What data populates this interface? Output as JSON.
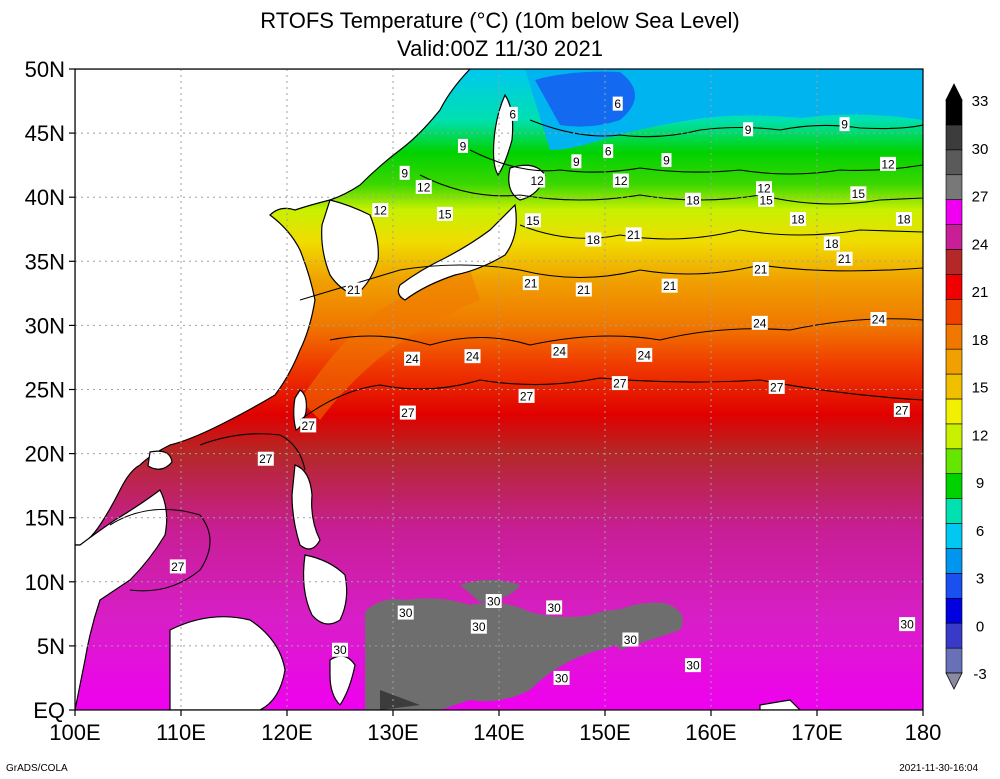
{
  "title": "RTOFS Temperature (°C) (10m below Sea Level)",
  "subtitle": "Valid:00Z 11/30 2021",
  "footer": {
    "credit": "GrADS/COLA",
    "timestamp": "2021-11-30-16:04"
  },
  "axes": {
    "lon_ticks": [
      {
        "value": 100,
        "label": "100E"
      },
      {
        "value": 110,
        "label": "110E"
      },
      {
        "value": 120,
        "label": "120E"
      },
      {
        "value": 130,
        "label": "130E"
      },
      {
        "value": 140,
        "label": "140E"
      },
      {
        "value": 150,
        "label": "150E"
      },
      {
        "value": 160,
        "label": "160E"
      },
      {
        "value": 170,
        "label": "170E"
      },
      {
        "value": 180,
        "label": "180"
      }
    ],
    "lat_ticks": [
      {
        "value": 0,
        "label": "EQ"
      },
      {
        "value": 5,
        "label": "5N"
      },
      {
        "value": 10,
        "label": "10N"
      },
      {
        "value": 15,
        "label": "15N"
      },
      {
        "value": 20,
        "label": "20N"
      },
      {
        "value": 25,
        "label": "25N"
      },
      {
        "value": 30,
        "label": "30N"
      },
      {
        "value": 35,
        "label": "35N"
      },
      {
        "value": 40,
        "label": "40N"
      },
      {
        "value": 45,
        "label": "45N"
      },
      {
        "value": 50,
        "label": "50N"
      }
    ],
    "lon_range": [
      100,
      180
    ],
    "lat_range": [
      0,
      50
    ],
    "grid": "dotted"
  },
  "colorbar": {
    "labels": [
      "-3",
      "0",
      "3",
      "6",
      "9",
      "12",
      "15",
      "18",
      "21",
      "24",
      "27",
      "30",
      "33"
    ],
    "levels": [
      -3,
      0,
      3,
      6,
      9,
      12,
      15,
      18,
      21,
      24,
      27,
      30,
      33
    ],
    "colors": [
      "#6870b8",
      "#3a3ac8",
      "#0000e0",
      "#1a50f0",
      "#0096f0",
      "#00c8f0",
      "#00e0b0",
      "#00d200",
      "#64e600",
      "#c8f000",
      "#f0f000",
      "#f0c000",
      "#f0a000",
      "#f07800",
      "#f04000",
      "#f00000",
      "#b42828",
      "#c81e96",
      "#f000f0",
      "#787878",
      "#5a5a5a",
      "#3c3c3c",
      "#000000"
    ]
  },
  "contour_labels": [
    {
      "text": "6",
      "lon": 151.2,
      "lat": 47.3
    },
    {
      "text": "6",
      "lon": 141.3,
      "lat": 46.5
    },
    {
      "text": "6",
      "lon": 150.3,
      "lat": 43.6
    },
    {
      "text": "9",
      "lon": 136.6,
      "lat": 44.0
    },
    {
      "text": "9",
      "lon": 131.1,
      "lat": 41.9
    },
    {
      "text": "9",
      "lon": 147.3,
      "lat": 42.8
    },
    {
      "text": "9",
      "lon": 155.8,
      "lat": 42.9
    },
    {
      "text": "9",
      "lon": 163.5,
      "lat": 45.3
    },
    {
      "text": "9",
      "lon": 172.6,
      "lat": 45.7
    },
    {
      "text": "12",
      "lon": 132.9,
      "lat": 40.8
    },
    {
      "text": "12",
      "lon": 128.8,
      "lat": 39.0
    },
    {
      "text": "12",
      "lon": 143.6,
      "lat": 41.3
    },
    {
      "text": "12",
      "lon": 151.5,
      "lat": 41.3
    },
    {
      "text": "12",
      "lon": 165.0,
      "lat": 40.7
    },
    {
      "text": "12",
      "lon": 176.7,
      "lat": 42.6
    },
    {
      "text": "15",
      "lon": 134.9,
      "lat": 38.7
    },
    {
      "text": "15",
      "lon": 143.2,
      "lat": 38.2
    },
    {
      "text": "15",
      "lon": 165.2,
      "lat": 39.8
    },
    {
      "text": "15",
      "lon": 173.9,
      "lat": 40.3
    },
    {
      "text": "18",
      "lon": 158.3,
      "lat": 39.8
    },
    {
      "text": "18",
      "lon": 148.9,
      "lat": 36.7
    },
    {
      "text": "18",
      "lon": 168.2,
      "lat": 38.3
    },
    {
      "text": "18",
      "lon": 171.4,
      "lat": 36.4
    },
    {
      "text": "18",
      "lon": 178.2,
      "lat": 38.3
    },
    {
      "text": "21",
      "lon": 126.3,
      "lat": 32.8
    },
    {
      "text": "21",
      "lon": 143.0,
      "lat": 33.3
    },
    {
      "text": "21",
      "lon": 148.0,
      "lat": 32.8
    },
    {
      "text": "21",
      "lon": 152.7,
      "lat": 37.1
    },
    {
      "text": "21",
      "lon": 156.1,
      "lat": 33.1
    },
    {
      "text": "21",
      "lon": 164.7,
      "lat": 34.4
    },
    {
      "text": "21",
      "lon": 172.6,
      "lat": 35.2
    },
    {
      "text": "24",
      "lon": 131.8,
      "lat": 27.4
    },
    {
      "text": "24",
      "lon": 137.5,
      "lat": 27.6
    },
    {
      "text": "24",
      "lon": 145.7,
      "lat": 28.0
    },
    {
      "text": "24",
      "lon": 153.7,
      "lat": 27.7
    },
    {
      "text": "24",
      "lon": 164.6,
      "lat": 30.2
    },
    {
      "text": "24",
      "lon": 175.8,
      "lat": 30.5
    },
    {
      "text": "27",
      "lon": 122.0,
      "lat": 22.2
    },
    {
      "text": "27",
      "lon": 131.4,
      "lat": 23.2
    },
    {
      "text": "27",
      "lon": 142.6,
      "lat": 24.5
    },
    {
      "text": "27",
      "lon": 151.4,
      "lat": 25.5
    },
    {
      "text": "27",
      "lon": 166.2,
      "lat": 25.2
    },
    {
      "text": "27",
      "lon": 178.0,
      "lat": 23.4
    },
    {
      "text": "27",
      "lon": 118.0,
      "lat": 19.6
    },
    {
      "text": "27",
      "lon": 109.7,
      "lat": 11.2
    },
    {
      "text": "30",
      "lon": 131.2,
      "lat": 7.6
    },
    {
      "text": "30",
      "lon": 139.5,
      "lat": 8.5
    },
    {
      "text": "30",
      "lon": 138.1,
      "lat": 6.5
    },
    {
      "text": "30",
      "lon": 145.2,
      "lat": 8.0
    },
    {
      "text": "30",
      "lon": 152.4,
      "lat": 5.5
    },
    {
      "text": "30",
      "lon": 125.0,
      "lat": 4.7
    },
    {
      "text": "30",
      "lon": 158.3,
      "lat": 3.5
    },
    {
      "text": "30",
      "lon": 145.9,
      "lat": 2.5
    },
    {
      "text": "30",
      "lon": 178.5,
      "lat": 6.7
    }
  ]
}
